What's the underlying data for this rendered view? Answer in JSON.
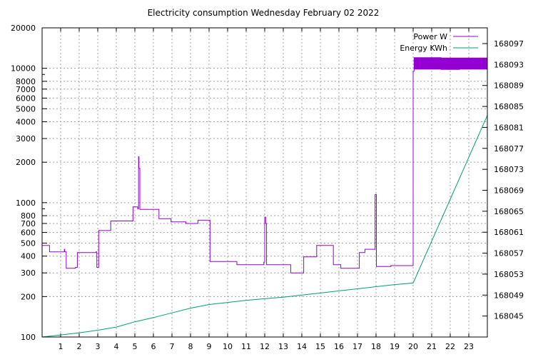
{
  "chart_data": {
    "type": "line",
    "title": "Electricity consumption Wednesday February 02 2022",
    "xlabel": "",
    "ylabel": "",
    "grid": true,
    "legend_position": "top-right",
    "x_axis": {
      "range": [
        0,
        24
      ],
      "ticks": [
        1,
        2,
        3,
        4,
        5,
        6,
        7,
        8,
        9,
        10,
        11,
        12,
        13,
        14,
        15,
        16,
        17,
        18,
        19,
        20,
        21,
        22,
        23
      ]
    },
    "y_axis_left": {
      "scale": "log",
      "range": [
        100,
        20000
      ],
      "ticks": [
        100,
        200,
        300,
        400,
        500,
        600,
        700,
        800,
        1000,
        2000,
        3000,
        4000,
        5000,
        6000,
        7000,
        8000,
        10000,
        20000
      ]
    },
    "y_axis_right": {
      "scale": "linear",
      "range": [
        168041,
        168100
      ],
      "ticks": [
        168045,
        168049,
        168053,
        168057,
        168061,
        168065,
        168069,
        168073,
        168077,
        168081,
        168085,
        168089,
        168093,
        168097
      ]
    },
    "series": [
      {
        "name": "Power W",
        "color": "#9400d3",
        "axis": "left",
        "step": true,
        "points": [
          [
            0,
            480
          ],
          [
            0.4,
            430
          ],
          [
            1.2,
            450
          ],
          [
            1.22,
            430
          ],
          [
            1.3,
            325
          ],
          [
            1.8,
            330
          ],
          [
            1.9,
            425
          ],
          [
            2.9,
            430
          ],
          [
            2.95,
            330
          ],
          [
            3.05,
            620
          ],
          [
            3.7,
            730
          ],
          [
            4.9,
            930
          ],
          [
            5.15,
            900
          ],
          [
            5.2,
            2200
          ],
          [
            5.22,
            1800
          ],
          [
            5.27,
            890
          ],
          [
            6.3,
            760
          ],
          [
            6.95,
            720
          ],
          [
            7.75,
            700
          ],
          [
            8.4,
            740
          ],
          [
            9.05,
            365
          ],
          [
            10.5,
            345
          ],
          [
            11.95,
            360
          ],
          [
            12.0,
            780
          ],
          [
            12.05,
            700
          ],
          [
            12.1,
            345
          ],
          [
            13.4,
            300
          ],
          [
            14.1,
            395
          ],
          [
            14.8,
            480
          ],
          [
            15.7,
            345
          ],
          [
            16.1,
            325
          ],
          [
            17.1,
            425
          ],
          [
            17.4,
            450
          ],
          [
            17.95,
            1150
          ],
          [
            18.02,
            335
          ],
          [
            18.8,
            340
          ],
          [
            20.0,
            9500
          ],
          [
            20.05,
            12000
          ],
          [
            21.5,
            9800
          ],
          [
            22.5,
            11500
          ],
          [
            24,
            10500
          ]
        ]
      },
      {
        "name": "Energy KWh",
        "color": "#009e73",
        "axis": "right",
        "step": false,
        "points": [
          [
            0,
            168041
          ],
          [
            1,
            168041.4
          ],
          [
            2,
            168041.8
          ],
          [
            3,
            168042.3
          ],
          [
            4,
            168042.9
          ],
          [
            5,
            168043.9
          ],
          [
            6,
            168044.7
          ],
          [
            7,
            168045.6
          ],
          [
            8,
            168046.5
          ],
          [
            9,
            168047.2
          ],
          [
            10,
            168047.6
          ],
          [
            11,
            168048.0
          ],
          [
            12,
            168048.3
          ],
          [
            13,
            168048.6
          ],
          [
            14,
            168049.0
          ],
          [
            15,
            168049.4
          ],
          [
            16,
            168049.8
          ],
          [
            17,
            168050.2
          ],
          [
            18,
            168050.6
          ],
          [
            19,
            168051.0
          ],
          [
            20,
            168051.3
          ],
          [
            21,
            168059.3
          ],
          [
            22,
            168067.3
          ],
          [
            23,
            168075.3
          ],
          [
            24,
            168083.3
          ]
        ]
      }
    ]
  }
}
